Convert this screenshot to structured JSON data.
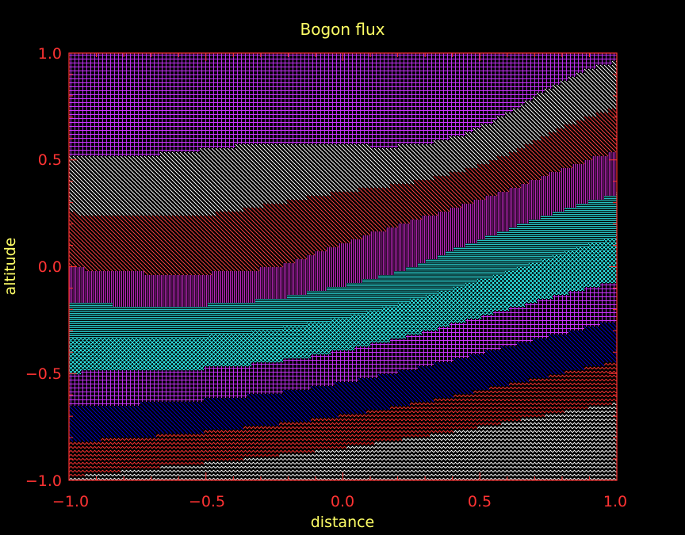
{
  "chart_data": {
    "type": "contour",
    "title": "Bogon flux",
    "xlabel": "distance",
    "ylabel": "altitude",
    "xlim": [
      -1.0,
      1.0
    ],
    "ylim": [
      -1.0,
      1.0
    ],
    "xticks": [
      "−1.0",
      "−0.5",
      "0.0",
      "0.5",
      "1.0"
    ],
    "yticks": [
      "−1.0",
      "−0.5",
      "0.0",
      "0.5",
      "1.0"
    ],
    "grid": false,
    "fill_style": "hatched",
    "levels": [
      {
        "index": 0,
        "color": "#ffffff",
        "hatch": "zigzag"
      },
      {
        "index": 1,
        "color": "#ff3333",
        "hatch": "zigzag"
      },
      {
        "index": 2,
        "color": "#0000cc",
        "hatch": "diagonal-backslash"
      },
      {
        "index": 3,
        "color": "#cc33ff",
        "hatch": "grid"
      },
      {
        "index": 4,
        "color": "#33ffff",
        "hatch": "crosshatch-diagonal"
      },
      {
        "index": 5,
        "color": "#33ffff",
        "hatch": "horizontal"
      },
      {
        "index": 6,
        "color": "#ff33ff",
        "hatch": "vertical"
      },
      {
        "index": 7,
        "color": "#ff4444",
        "hatch": "diagonal-backslash"
      },
      {
        "index": 8,
        "color": "#ffffff",
        "hatch": "diagonal-backslash"
      },
      {
        "index": 9,
        "color": "#cc33ff",
        "hatch": "grid"
      }
    ],
    "frame_color": "#ff3333",
    "text_color": "#ffff66"
  }
}
